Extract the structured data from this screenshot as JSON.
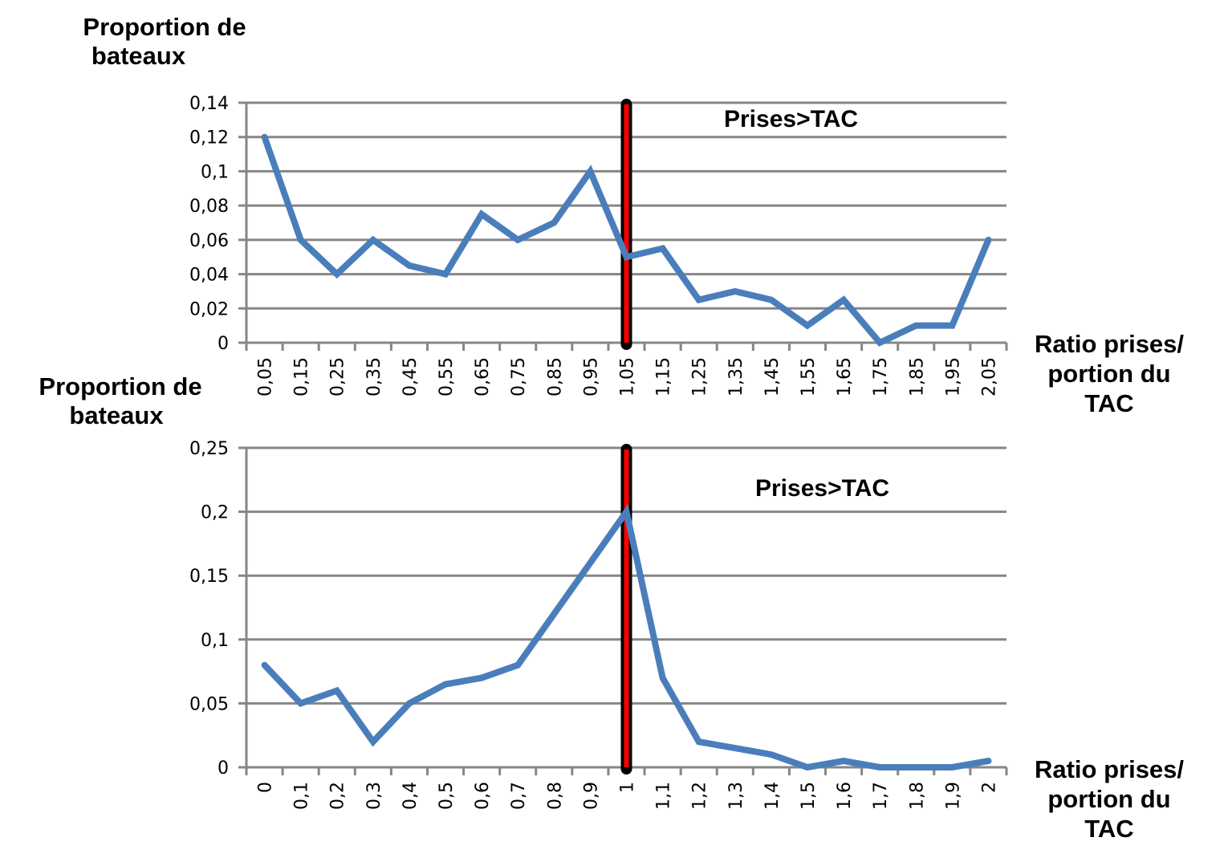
{
  "chart_data": [
    {
      "type": "line",
      "title": "",
      "annotation": "Prises>TAC",
      "ylabel": "Proportion de bateaux",
      "xlabel": "Ratio prises/ portion du TAC",
      "ylim": [
        0,
        0.14
      ],
      "yticks": [
        "0",
        "0,02",
        "0,04",
        "0,06",
        "0,08",
        "0,1",
        "0,12",
        "0,14"
      ],
      "grid": true,
      "legend": "none",
      "threshold_line": {
        "x": "1,05",
        "colors": [
          "#ff0000",
          "#000000"
        ]
      },
      "categories": [
        "0,05",
        "0,15",
        "0,25",
        "0,35",
        "0,45",
        "0,55",
        "0,65",
        "0,75",
        "0,85",
        "0,95",
        "1,05",
        "1,15",
        "1,25",
        "1,35",
        "1,45",
        "1,55",
        "1,65",
        "1,75",
        "1,85",
        "1,95",
        "2,05"
      ],
      "series": [
        {
          "name": "Proportion de bateaux",
          "color": "#4a7ebb",
          "values": [
            0.12,
            0.06,
            0.04,
            0.06,
            0.045,
            0.04,
            0.075,
            0.06,
            0.07,
            0.1,
            0.05,
            0.055,
            0.025,
            0.03,
            0.025,
            0.01,
            0.025,
            0.0,
            0.01,
            0.01,
            0.06
          ]
        }
      ]
    },
    {
      "type": "line",
      "title": "",
      "annotation": "Prises>TAC",
      "ylabel": "Proportion de bateaux",
      "xlabel": "Ratio prises/ portion du TAC",
      "ylim": [
        0,
        0.25
      ],
      "yticks": [
        "0",
        "0,05",
        "0,1",
        "0,15",
        "0,2",
        "0,25"
      ],
      "grid": true,
      "legend": "none",
      "threshold_line": {
        "x": "1",
        "colors": [
          "#ff0000",
          "#000000"
        ]
      },
      "categories": [
        "0",
        "0,1",
        "0,2",
        "0,3",
        "0,4",
        "0,5",
        "0,6",
        "0,7",
        "0,8",
        "0,9",
        "1",
        "1,1",
        "1,2",
        "1,3",
        "1,4",
        "1,5",
        "1,6",
        "1,7",
        "1,8",
        "1,9",
        "2"
      ],
      "series": [
        {
          "name": "Proportion de bateaux",
          "color": "#4a7ebb",
          "values": [
            0.08,
            0.05,
            0.06,
            0.02,
            0.05,
            0.065,
            0.07,
            0.08,
            0.12,
            0.16,
            0.2,
            0.07,
            0.02,
            0.015,
            0.01,
            0.0,
            0.005,
            0.0,
            0.0,
            0.0,
            0.005
          ]
        }
      ]
    }
  ],
  "top": {
    "ylabel_line1": "Proportion de",
    "ylabel_line2": "bateaux",
    "annotation": "Prises>TAC",
    "xlabel_line1": "Ratio prises/",
    "xlabel_line2": "portion du",
    "xlabel_line3": "TAC"
  },
  "bottom": {
    "ylabel_line1": "Proportion de",
    "ylabel_line2": "bateaux",
    "annotation": "Prises>TAC",
    "xlabel_line1": "Ratio prises/",
    "xlabel_line2": "portion du",
    "xlabel_line3": "TAC"
  },
  "colors": {
    "series": "#4a7ebb",
    "grid": "#868686",
    "threshold_inner": "#ff0000",
    "threshold_outer": "#000000"
  }
}
